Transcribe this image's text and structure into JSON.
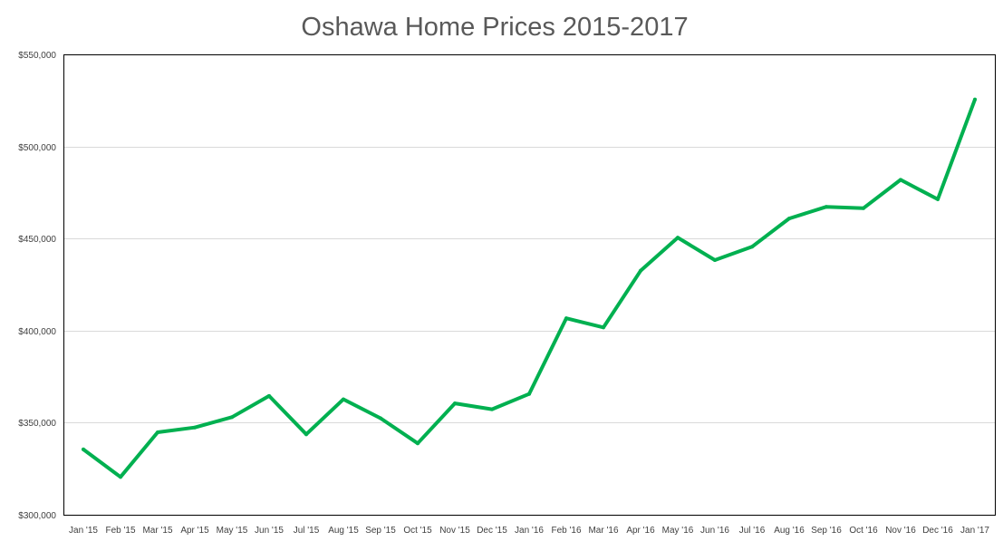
{
  "chart_data": {
    "type": "line",
    "title": "Oshawa Home Prices 2015-2017",
    "xlabel": "",
    "ylabel": "",
    "ylim": [
      300000,
      550000
    ],
    "y_tick_labels": [
      "$300,000",
      "$350,000",
      "$400,000",
      "$450,000",
      "$500,000",
      "$550,000"
    ],
    "y_ticks": [
      300000,
      350000,
      400000,
      450000,
      500000,
      550000
    ],
    "grid": "horizontal",
    "categories": [
      "Jan '15",
      "Feb '15",
      "Mar '15",
      "Apr '15",
      "May '15",
      "Jun '15",
      "Jul '15",
      "Aug '15",
      "Sep '15",
      "Oct '15",
      "Nov '15",
      "Dec '15",
      "Jan '16",
      "Feb '16",
      "Mar '16",
      "Apr '16",
      "May '16",
      "Jun '16",
      "Jul '16",
      "Aug '16",
      "Sep '16",
      "Oct '16",
      "Nov '16",
      "Dec '16",
      "Jan '17"
    ],
    "series": [
      {
        "color": "#00b050",
        "values": [
          335500,
          320500,
          344800,
          347400,
          353000,
          364500,
          343700,
          362700,
          352400,
          338800,
          360500,
          357300,
          365600,
          406700,
          401700,
          432500,
          450500,
          438300,
          445500,
          460900,
          467200,
          466500,
          481900,
          471300,
          525500
        ]
      }
    ]
  }
}
